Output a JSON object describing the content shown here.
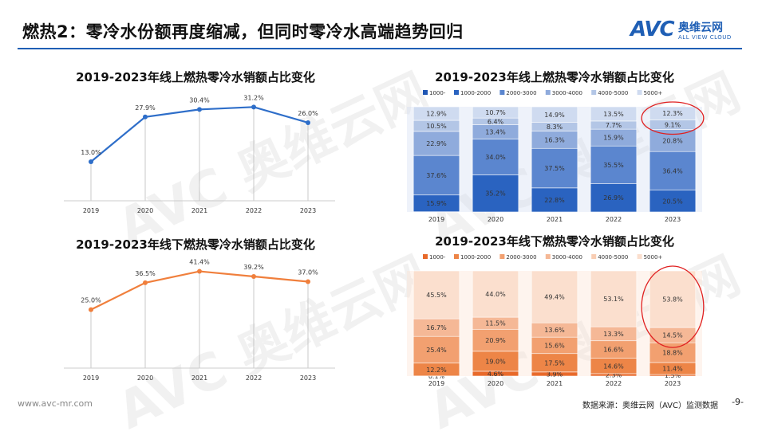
{
  "page": {
    "title": "燃热2：零冷水份额再度缩减，但同时零冷水高端趋势回归",
    "footer_url": "www.avc-mr.com",
    "source_note": "数据来源：奥维云网（AVC）监测数据",
    "page_number": "-9-"
  },
  "logo": {
    "main": "AVC",
    "cn": "奥维云网",
    "en": "ALL VIEW CLOUD"
  },
  "watermark": {
    "text": "AVC 奥维云网",
    "sub": "ALL VIEW CLOUD"
  },
  "colors": {
    "online_line": "#2e6ec9",
    "offline_line": "#f07f3c",
    "online_stack": [
      "#1f56b4",
      "#2a63c0",
      "#5b86cf",
      "#8fabdc",
      "#b3c6e6",
      "#cfdbf0"
    ],
    "offline_stack": [
      "#e86a2b",
      "#ed8547",
      "#f2a070",
      "#f5b896",
      "#f8cdb3",
      "#fbdfce"
    ],
    "circle": "#e02020"
  },
  "chart_data": [
    {
      "id": "online-line",
      "type": "line",
      "title": "2019-2023年线上燃热零冷水销额占比变化",
      "categories": [
        "2019",
        "2020",
        "2021",
        "2022",
        "2023"
      ],
      "values": [
        13.0,
        27.9,
        30.4,
        31.2,
        26.0
      ],
      "labels": [
        "13.0%",
        "27.9%",
        "30.4%",
        "31.2%",
        "26.0%"
      ],
      "ylim": [
        0,
        35
      ],
      "grid": false
    },
    {
      "id": "offline-line",
      "type": "line",
      "title": "2019-2023年线下燃热零冷水销额占比变化",
      "categories": [
        "2019",
        "2020",
        "2021",
        "2022",
        "2023"
      ],
      "values": [
        25.0,
        36.5,
        41.4,
        39.2,
        37.0
      ],
      "labels": [
        "25.0%",
        "36.5%",
        "41.4%",
        "39.2%",
        "37.0%"
      ],
      "ylim": [
        0,
        45
      ],
      "grid": false
    },
    {
      "id": "online-stack",
      "type": "bar",
      "stacked": true,
      "title": "2019-2023年线上燃热零冷水销额占比变化",
      "categories": [
        "2019",
        "2020",
        "2021",
        "2022",
        "2023"
      ],
      "legend_position": "top",
      "series": [
        {
          "name": "1000-",
          "values": [
            0.2,
            0.0,
            0.0,
            0.0,
            0.0
          ],
          "labels": [
            "",
            "",
            "",
            "",
            ""
          ]
        },
        {
          "name": "1000-2000",
          "values": [
            15.9,
            35.2,
            22.8,
            26.9,
            20.5
          ],
          "labels": [
            "15.9%",
            "35.2%",
            "22.8%",
            "26.9%",
            "20.5%"
          ]
        },
        {
          "name": "2000-3000",
          "values": [
            37.6,
            34.0,
            37.5,
            35.5,
            36.4
          ],
          "labels": [
            "37.6%",
            "34.0%",
            "37.5%",
            "35.5%",
            "36.4%"
          ]
        },
        {
          "name": "3000-4000",
          "values": [
            22.9,
            13.4,
            16.3,
            15.9,
            20.8
          ],
          "labels": [
            "22.9%",
            "13.4%",
            "16.3%",
            "15.9%",
            "20.8%"
          ]
        },
        {
          "name": "4000-5000",
          "values": [
            10.5,
            6.4,
            8.3,
            7.7,
            9.1
          ],
          "labels": [
            "10.5%",
            "6.4%",
            "8.3%",
            "7.7%",
            "9.1%"
          ]
        },
        {
          "name": "5000+",
          "values": [
            12.9,
            10.7,
            14.9,
            13.5,
            12.3
          ],
          "labels": [
            "12.9%",
            "10.7%",
            "14.9%",
            "13.5%",
            "12.3%"
          ]
        }
      ],
      "highlight": {
        "category": "2023",
        "series": [
          "4000-5000",
          "5000+"
        ]
      }
    },
    {
      "id": "offline-stack",
      "type": "bar",
      "stacked": true,
      "title": "2019-2023年线下燃热零冷水销额占比变化",
      "categories": [
        "2019",
        "2020",
        "2021",
        "2022",
        "2023"
      ],
      "legend_position": "top",
      "series": [
        {
          "name": "1000-",
          "values": [
            0.1,
            4.6,
            3.9,
            2.3,
            1.5
          ],
          "labels": [
            "0.1%",
            "4.6%",
            "3.9%",
            "2.3%",
            "1.5%"
          ]
        },
        {
          "name": "1000-2000",
          "values": [
            12.2,
            19.0,
            17.5,
            14.6,
            11.4
          ],
          "labels": [
            "12.2%",
            "19.0%",
            "17.5%",
            "14.6%",
            "11.4%"
          ]
        },
        {
          "name": "2000-3000",
          "values": [
            25.4,
            20.9,
            15.6,
            16.6,
            18.8
          ],
          "labels": [
            "25.4%",
            "20.9%",
            "15.6%",
            "16.6%",
            "18.8%"
          ]
        },
        {
          "name": "3000-4000",
          "values": [
            16.7,
            11.5,
            13.6,
            13.3,
            14.5
          ],
          "labels": [
            "16.7%",
            "11.5%",
            "13.6%",
            "13.3%",
            "14.5%"
          ]
        },
        {
          "name": "4000-5000",
          "values": [
            0.0,
            0.0,
            0.0,
            0.0,
            0.0
          ],
          "labels": [
            "",
            "",
            "",
            "",
            ""
          ]
        },
        {
          "name": "5000+",
          "values": [
            45.5,
            44.0,
            49.4,
            53.1,
            53.8
          ],
          "labels": [
            "45.5%",
            "44.0%",
            "49.4%",
            "53.1%",
            "53.8%"
          ]
        }
      ],
      "highlight": {
        "category": "2023",
        "series": [
          "3000-4000",
          "5000+"
        ]
      }
    }
  ]
}
